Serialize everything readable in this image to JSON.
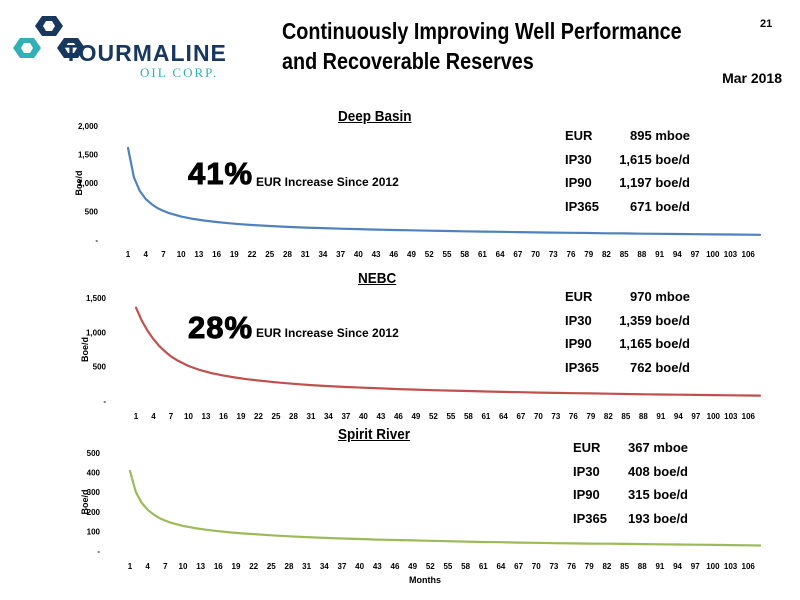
{
  "header": {
    "company_name": "TOURMALINE",
    "company_sub": "OIL CORP.",
    "title_line1": "Continuously Improving Well Performance",
    "title_line2": "and Recoverable Reserves",
    "page_number": "21",
    "date": "Mar 2018"
  },
  "colors": {
    "deep_basin": "#4F81BD",
    "nebc": "#C0504D",
    "spirit_river": "#9BBB59",
    "logo_dark": "#17375E",
    "logo_teal": "#31B0B6"
  },
  "charts": [
    {
      "title": "Deep Basin",
      "increase_pct": "41%",
      "increase_text": "EUR Increase Since 2012",
      "stats": [
        {
          "label": "EUR",
          "value": "895 mboe"
        },
        {
          "label": "IP30",
          "value": "1,615 boe/d"
        },
        {
          "label": "IP90",
          "value": "1,197 boe/d"
        },
        {
          "label": "IP365",
          "value": "671 boe/d"
        }
      ]
    },
    {
      "title": "NEBC",
      "increase_pct": "28%",
      "increase_text": "EUR Increase Since 2012",
      "stats": [
        {
          "label": "EUR",
          "value": "970 mboe"
        },
        {
          "label": "IP30",
          "value": "1,359 boe/d"
        },
        {
          "label": "IP90",
          "value": "1,165 boe/d"
        },
        {
          "label": "IP365",
          "value": "762 boe/d"
        }
      ]
    },
    {
      "title": "Spirit River",
      "increase_pct": "",
      "increase_text": "",
      "stats": [
        {
          "label": "EUR",
          "value": "367 mboe"
        },
        {
          "label": "IP30",
          "value": "408 boe/d"
        },
        {
          "label": "IP90",
          "value": "315 boe/d"
        },
        {
          "label": "IP365",
          "value": "193 boe/d"
        }
      ]
    }
  ],
  "chart_data": [
    {
      "type": "line",
      "title": "Deep Basin",
      "xlabel": "",
      "ylabel": "Boe/d",
      "y_ticks": [
        "-",
        "500",
        "1,000",
        "1,500",
        "2,000"
      ],
      "ylim": [
        0,
        2000
      ],
      "x_ticks": [
        "1",
        "4",
        "7",
        "10",
        "13",
        "16",
        "19",
        "22",
        "25",
        "28",
        "31",
        "34",
        "37",
        "40",
        "43",
        "46",
        "49",
        "52",
        "55",
        "58",
        "61",
        "64",
        "67",
        "70",
        "73",
        "76",
        "79",
        "82",
        "85",
        "88",
        "91",
        "94",
        "97",
        "100",
        "103",
        "106"
      ],
      "x": [
        1,
        2,
        3,
        4,
        5,
        6,
        7,
        8,
        10,
        12,
        14,
        16,
        18,
        20,
        22,
        25,
        28,
        31,
        34,
        37,
        40,
        43,
        46,
        49,
        52,
        55,
        58,
        61,
        64,
        67,
        70,
        73,
        76,
        79,
        82,
        85,
        88,
        91,
        94,
        97,
        100,
        103,
        106,
        108
      ],
      "y": [
        1615,
        1100,
        860,
        720,
        630,
        560,
        510,
        470,
        410,
        370,
        340,
        315,
        295,
        278,
        263,
        245,
        230,
        218,
        208,
        199,
        191,
        183,
        176,
        170,
        164,
        158,
        153,
        148,
        143,
        138,
        134,
        130,
        126,
        122,
        118,
        115,
        111,
        108,
        105,
        102,
        99,
        96,
        93,
        91
      ],
      "color": "#4F81BD",
      "grid": false
    },
    {
      "type": "line",
      "title": "NEBC",
      "xlabel": "",
      "ylabel": "Boe/d",
      "y_ticks": [
        "-",
        "500",
        "1,000",
        "1,500"
      ],
      "ylim": [
        0,
        1500
      ],
      "x_ticks": [
        "1",
        "4",
        "7",
        "10",
        "13",
        "16",
        "19",
        "22",
        "25",
        "28",
        "31",
        "34",
        "37",
        "40",
        "43",
        "46",
        "49",
        "52",
        "55",
        "58",
        "61",
        "64",
        "67",
        "70",
        "73",
        "76",
        "79",
        "82",
        "85",
        "88",
        "91",
        "94",
        "97",
        "100",
        "103",
        "106"
      ],
      "x": [
        1,
        2,
        3,
        4,
        5,
        6,
        7,
        8,
        10,
        12,
        14,
        16,
        18,
        20,
        22,
        25,
        28,
        31,
        34,
        37,
        40,
        43,
        46,
        49,
        52,
        55,
        58,
        61,
        64,
        67,
        70,
        73,
        76,
        79,
        82,
        85,
        88,
        91,
        94,
        97,
        100,
        103,
        106,
        108
      ],
      "y": [
        1359,
        1170,
        1020,
        900,
        800,
        720,
        650,
        595,
        510,
        450,
        405,
        370,
        342,
        318,
        298,
        272,
        250,
        232,
        217,
        204,
        193,
        183,
        174,
        166,
        158,
        151,
        145,
        139,
        133,
        128,
        123,
        118,
        114,
        110,
        106,
        102,
        98,
        95,
        92,
        89,
        86,
        83,
        80,
        78
      ],
      "color": "#C0504D",
      "grid": false
    },
    {
      "type": "line",
      "title": "Spirit River",
      "xlabel": "Months",
      "ylabel": "Boe/d",
      "y_ticks": [
        "-",
        "100",
        "200",
        "300",
        "400",
        "500"
      ],
      "ylim": [
        0,
        500
      ],
      "x_ticks": [
        "1",
        "4",
        "7",
        "10",
        "13",
        "16",
        "19",
        "22",
        "25",
        "28",
        "31",
        "34",
        "37",
        "40",
        "43",
        "46",
        "49",
        "52",
        "55",
        "58",
        "61",
        "64",
        "67",
        "70",
        "73",
        "76",
        "79",
        "82",
        "85",
        "88",
        "91",
        "94",
        "97",
        "100",
        "103",
        "106"
      ],
      "x": [
        1,
        2,
        3,
        4,
        5,
        6,
        7,
        8,
        10,
        12,
        14,
        16,
        18,
        20,
        22,
        25,
        28,
        31,
        34,
        37,
        40,
        43,
        46,
        49,
        52,
        55,
        58,
        61,
        64,
        67,
        70,
        73,
        76,
        79,
        82,
        85,
        88,
        91,
        94,
        97,
        100,
        103,
        106,
        108
      ],
      "y": [
        408,
        300,
        245,
        210,
        186,
        168,
        155,
        144,
        128,
        117,
        108,
        101,
        95,
        90,
        86,
        80,
        75,
        71,
        67,
        64,
        61,
        58,
        56,
        54,
        52,
        50,
        48,
        46,
        45,
        43,
        42,
        40,
        39,
        38,
        37,
        36,
        35,
        34,
        33,
        32,
        31,
        30,
        29,
        28
      ],
      "color": "#9BBB59",
      "grid": false
    }
  ]
}
